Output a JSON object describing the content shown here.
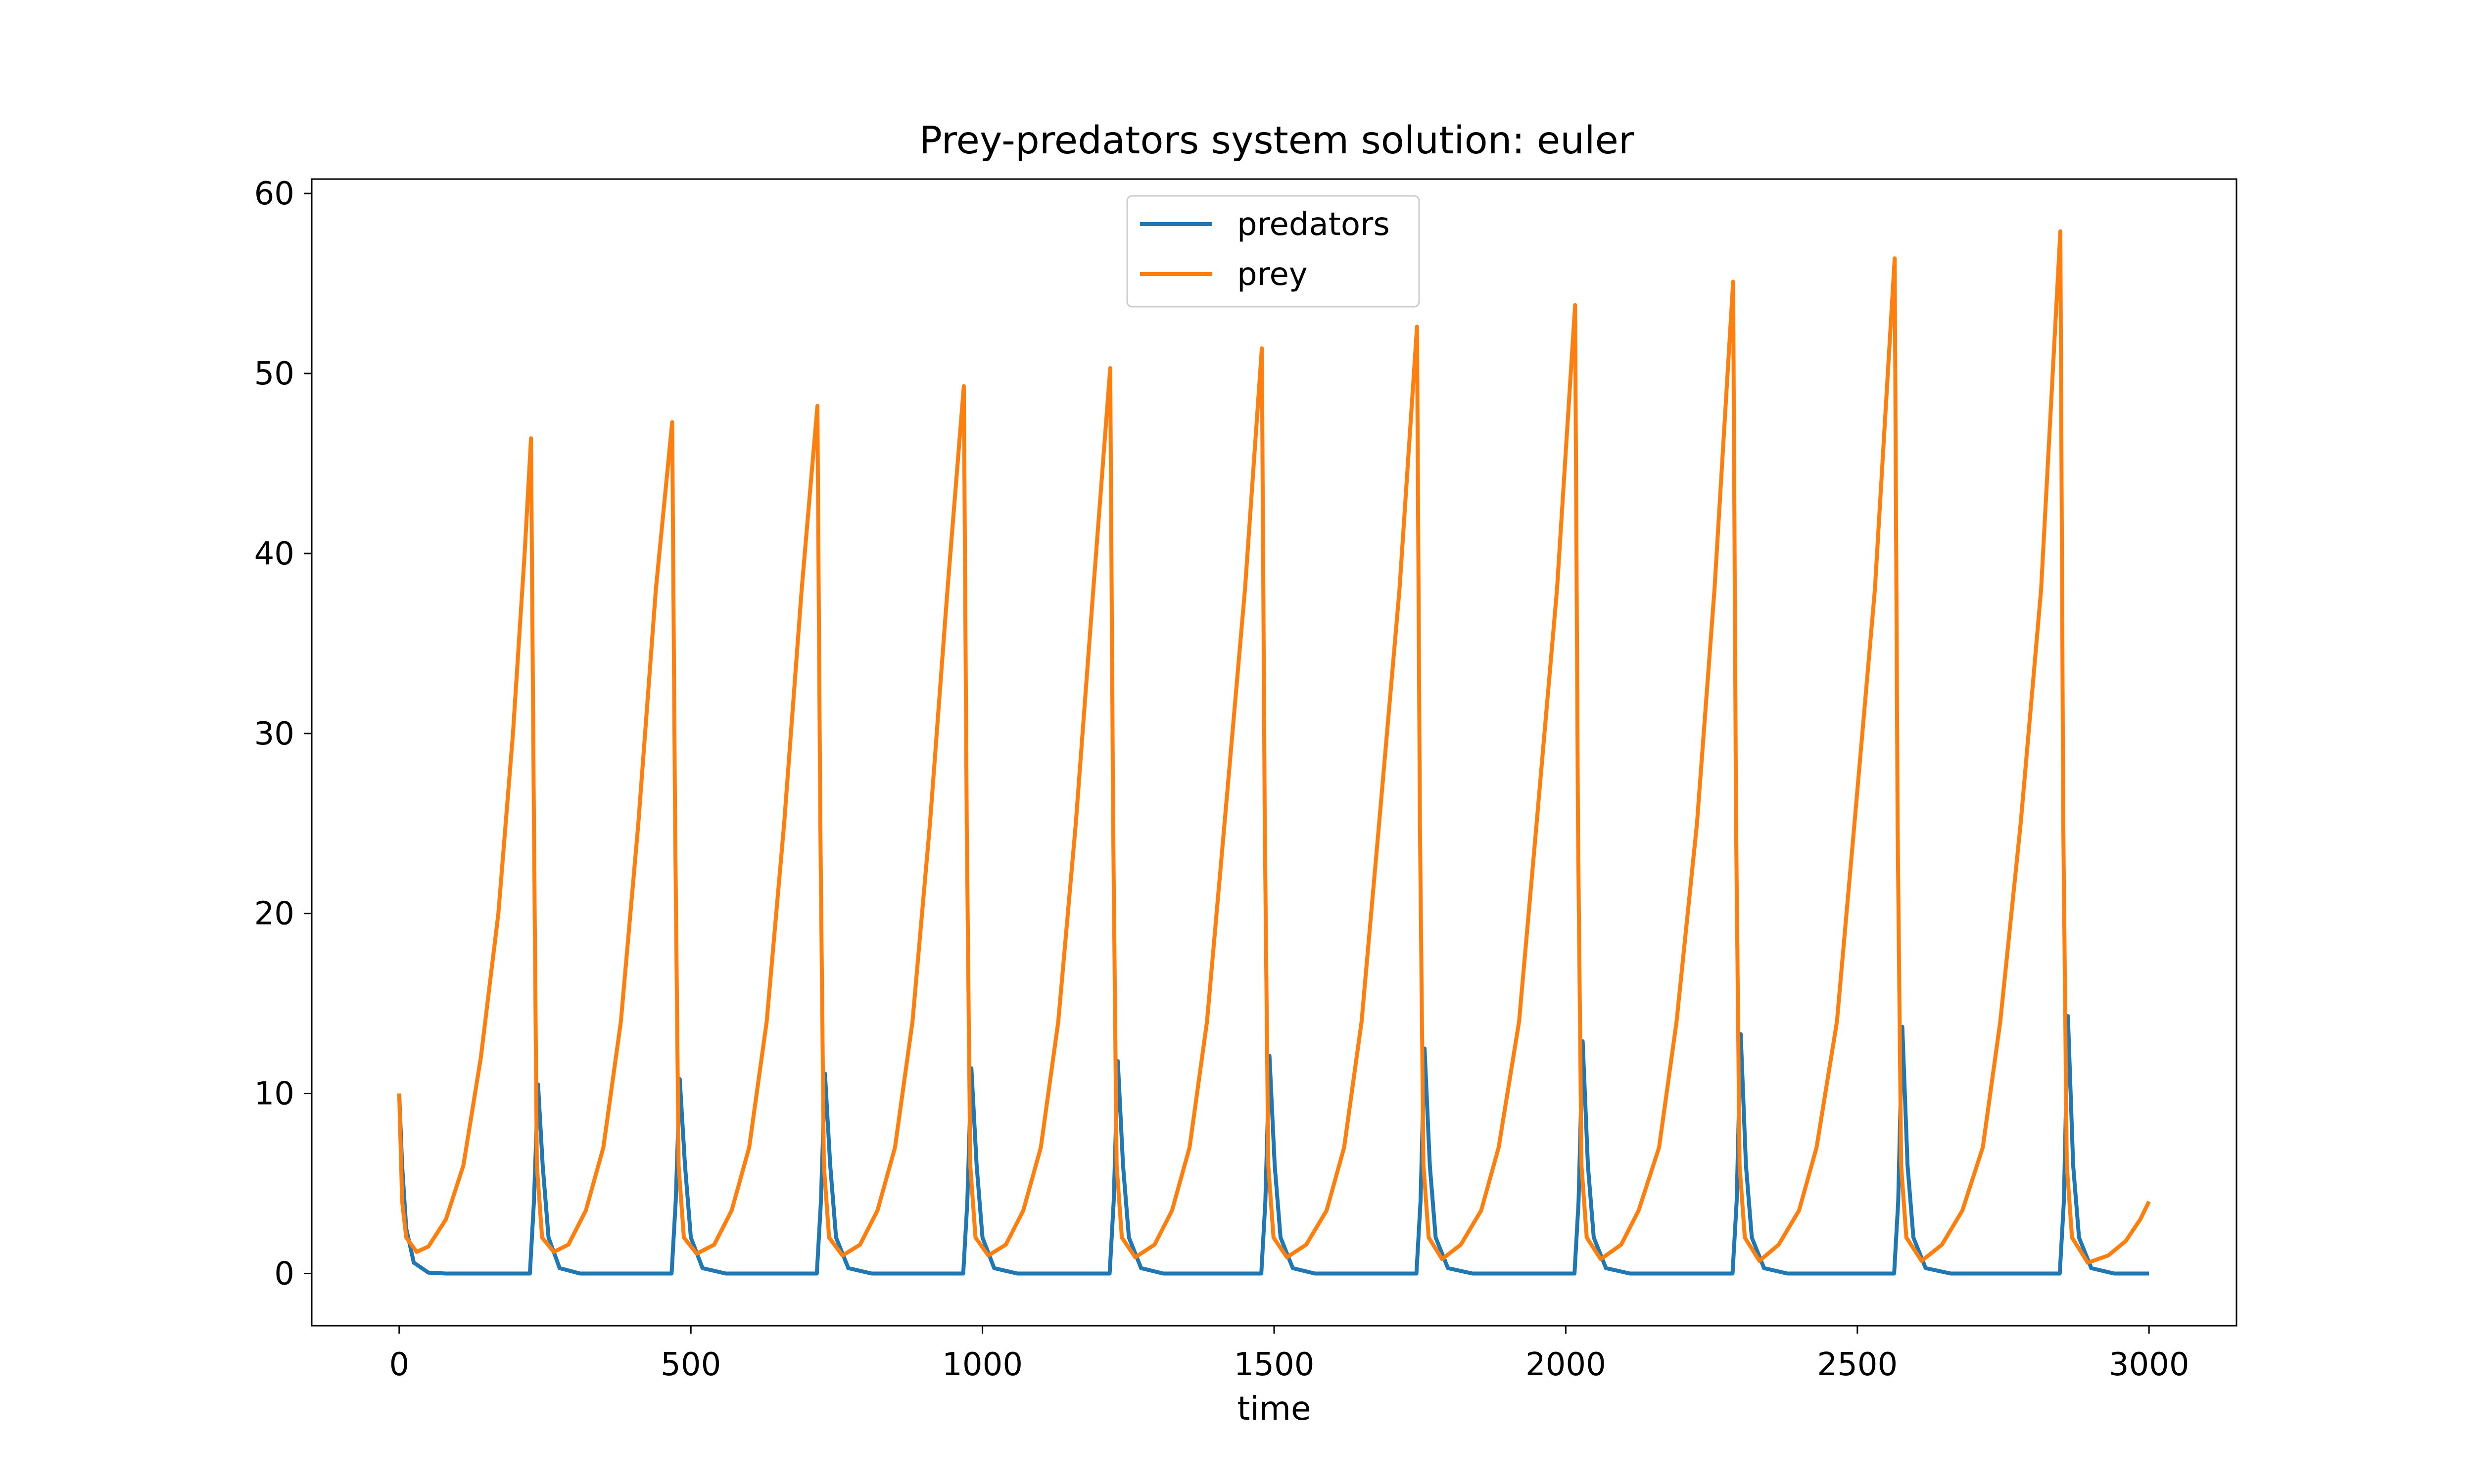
{
  "chart_data": {
    "type": "line",
    "title": "Prey-predators system solution: euler",
    "xlabel": "time",
    "ylabel": "",
    "xlim": [
      -150,
      3150
    ],
    "ylim": [
      -2.9,
      60.8
    ],
    "xticks": [
      0,
      500,
      1000,
      1500,
      2000,
      2500,
      3000
    ],
    "yticks": [
      0,
      10,
      20,
      30,
      40,
      50,
      60
    ],
    "grid": false,
    "legend_position": "top-center",
    "colors": {
      "predators": "#1f77b4",
      "prey": "#ff7f0e"
    },
    "series": [
      {
        "name": "predators",
        "color": "#1f77b4",
        "points": [
          [
            0,
            10.0
          ],
          [
            5,
            6.0
          ],
          [
            12,
            2.5
          ],
          [
            25,
            0.6
          ],
          [
            50,
            0.05
          ],
          [
            80,
            0.0
          ],
          [
            224,
            0.0
          ],
          [
            231,
            4.0
          ],
          [
            238,
            10.5
          ],
          [
            246,
            6.0
          ],
          [
            256,
            2.0
          ],
          [
            275,
            0.3
          ],
          [
            310,
            0.0
          ],
          [
            467,
            0.0
          ],
          [
            474,
            4.0
          ],
          [
            481,
            10.8
          ],
          [
            490,
            6.0
          ],
          [
            500,
            2.0
          ],
          [
            520,
            0.3
          ],
          [
            560,
            0.0
          ],
          [
            716,
            0.0
          ],
          [
            723,
            4.0
          ],
          [
            730,
            11.1
          ],
          [
            739,
            6.0
          ],
          [
            749,
            2.0
          ],
          [
            770,
            0.3
          ],
          [
            810,
            0.0
          ],
          [
            967,
            0.0
          ],
          [
            974,
            4.0
          ],
          [
            981,
            11.4
          ],
          [
            990,
            6.0
          ],
          [
            1000,
            2.0
          ],
          [
            1020,
            0.3
          ],
          [
            1060,
            0.0
          ],
          [
            1218,
            0.0
          ],
          [
            1225,
            4.0
          ],
          [
            1232,
            11.8
          ],
          [
            1241,
            6.0
          ],
          [
            1251,
            2.0
          ],
          [
            1272,
            0.3
          ],
          [
            1310,
            0.0
          ],
          [
            1478,
            0.0
          ],
          [
            1485,
            4.0
          ],
          [
            1492,
            12.1
          ],
          [
            1501,
            6.0
          ],
          [
            1511,
            2.0
          ],
          [
            1532,
            0.3
          ],
          [
            1570,
            0.0
          ],
          [
            1744,
            0.0
          ],
          [
            1751,
            4.0
          ],
          [
            1758,
            12.5
          ],
          [
            1767,
            6.0
          ],
          [
            1777,
            2.0
          ],
          [
            1798,
            0.3
          ],
          [
            1840,
            0.0
          ],
          [
            2015,
            0.0
          ],
          [
            2022,
            4.0
          ],
          [
            2029,
            12.9
          ],
          [
            2038,
            6.0
          ],
          [
            2048,
            2.0
          ],
          [
            2069,
            0.3
          ],
          [
            2110,
            0.0
          ],
          [
            2286,
            0.0
          ],
          [
            2293,
            4.0
          ],
          [
            2300,
            13.3
          ],
          [
            2309,
            6.0
          ],
          [
            2319,
            2.0
          ],
          [
            2340,
            0.3
          ],
          [
            2380,
            0.0
          ],
          [
            2563,
            0.0
          ],
          [
            2570,
            4.0
          ],
          [
            2577,
            13.7
          ],
          [
            2586,
            6.0
          ],
          [
            2596,
            2.0
          ],
          [
            2617,
            0.3
          ],
          [
            2660,
            0.0
          ],
          [
            2847,
            0.0
          ],
          [
            2854,
            4.0
          ],
          [
            2861,
            14.3
          ],
          [
            2870,
            6.0
          ],
          [
            2880,
            2.0
          ],
          [
            2901,
            0.3
          ],
          [
            2940,
            0.0
          ],
          [
            3000,
            0.0
          ]
        ]
      },
      {
        "name": "prey",
        "color": "#ff7f0e",
        "points": [
          [
            0,
            10.0
          ],
          [
            5,
            4.0
          ],
          [
            12,
            2.0
          ],
          [
            30,
            1.2
          ],
          [
            50,
            1.5
          ],
          [
            80,
            3.0
          ],
          [
            110,
            6.0
          ],
          [
            140,
            12.0
          ],
          [
            170,
            20.0
          ],
          [
            195,
            30.0
          ],
          [
            215,
            40.0
          ],
          [
            226,
            46.4
          ],
          [
            231,
            25.0
          ],
          [
            236,
            6.0
          ],
          [
            245,
            2.0
          ],
          [
            265,
            1.2
          ],
          [
            290,
            1.6
          ],
          [
            320,
            3.5
          ],
          [
            350,
            7.0
          ],
          [
            380,
            14.0
          ],
          [
            410,
            25.0
          ],
          [
            440,
            38.0
          ],
          [
            468,
            47.3
          ],
          [
            473,
            25.0
          ],
          [
            479,
            6.0
          ],
          [
            488,
            2.0
          ],
          [
            510,
            1.1
          ],
          [
            540,
            1.6
          ],
          [
            570,
            3.5
          ],
          [
            600,
            7.0
          ],
          [
            630,
            14.0
          ],
          [
            660,
            25.0
          ],
          [
            690,
            38.0
          ],
          [
            717,
            48.2
          ],
          [
            722,
            25.0
          ],
          [
            728,
            6.0
          ],
          [
            737,
            2.0
          ],
          [
            760,
            1.0
          ],
          [
            790,
            1.6
          ],
          [
            820,
            3.5
          ],
          [
            850,
            7.0
          ],
          [
            880,
            14.0
          ],
          [
            910,
            25.0
          ],
          [
            940,
            38.0
          ],
          [
            968,
            49.3
          ],
          [
            973,
            25.0
          ],
          [
            979,
            6.0
          ],
          [
            988,
            2.0
          ],
          [
            1010,
            1.0
          ],
          [
            1040,
            1.6
          ],
          [
            1070,
            3.5
          ],
          [
            1100,
            7.0
          ],
          [
            1130,
            14.0
          ],
          [
            1160,
            25.0
          ],
          [
            1190,
            38.0
          ],
          [
            1219,
            50.3
          ],
          [
            1224,
            25.0
          ],
          [
            1230,
            6.0
          ],
          [
            1239,
            2.0
          ],
          [
            1262,
            0.9
          ],
          [
            1295,
            1.6
          ],
          [
            1325,
            3.5
          ],
          [
            1355,
            7.0
          ],
          [
            1385,
            14.0
          ],
          [
            1415,
            25.0
          ],
          [
            1450,
            38.0
          ],
          [
            1479,
            51.4
          ],
          [
            1484,
            25.0
          ],
          [
            1490,
            6.0
          ],
          [
            1499,
            2.0
          ],
          [
            1522,
            0.9
          ],
          [
            1555,
            1.6
          ],
          [
            1590,
            3.5
          ],
          [
            1620,
            7.0
          ],
          [
            1650,
            14.0
          ],
          [
            1680,
            25.0
          ],
          [
            1715,
            38.0
          ],
          [
            1745,
            52.6
          ],
          [
            1750,
            25.0
          ],
          [
            1756,
            6.0
          ],
          [
            1765,
            2.0
          ],
          [
            1788,
            0.8
          ],
          [
            1820,
            1.6
          ],
          [
            1855,
            3.5
          ],
          [
            1885,
            7.0
          ],
          [
            1920,
            14.0
          ],
          [
            1950,
            25.0
          ],
          [
            1985,
            38.0
          ],
          [
            2016,
            53.8
          ],
          [
            2021,
            25.0
          ],
          [
            2027,
            6.0
          ],
          [
            2036,
            2.0
          ],
          [
            2060,
            0.8
          ],
          [
            2095,
            1.6
          ],
          [
            2125,
            3.5
          ],
          [
            2160,
            7.0
          ],
          [
            2190,
            14.0
          ],
          [
            2225,
            25.0
          ],
          [
            2255,
            38.0
          ],
          [
            2287,
            55.1
          ],
          [
            2292,
            25.0
          ],
          [
            2298,
            6.0
          ],
          [
            2307,
            2.0
          ],
          [
            2332,
            0.7
          ],
          [
            2365,
            1.6
          ],
          [
            2400,
            3.5
          ],
          [
            2430,
            7.0
          ],
          [
            2465,
            14.0
          ],
          [
            2495,
            25.0
          ],
          [
            2530,
            38.0
          ],
          [
            2564,
            56.4
          ],
          [
            2569,
            25.0
          ],
          [
            2575,
            6.0
          ],
          [
            2584,
            2.0
          ],
          [
            2610,
            0.7
          ],
          [
            2645,
            1.6
          ],
          [
            2680,
            3.5
          ],
          [
            2715,
            7.0
          ],
          [
            2745,
            14.0
          ],
          [
            2780,
            25.0
          ],
          [
            2815,
            38.0
          ],
          [
            2848,
            57.9
          ],
          [
            2853,
            25.0
          ],
          [
            2859,
            6.0
          ],
          [
            2868,
            2.0
          ],
          [
            2895,
            0.6
          ],
          [
            2930,
            1.0
          ],
          [
            2960,
            1.8
          ],
          [
            2985,
            3.0
          ],
          [
            3000,
            4.0
          ]
        ]
      }
    ]
  }
}
